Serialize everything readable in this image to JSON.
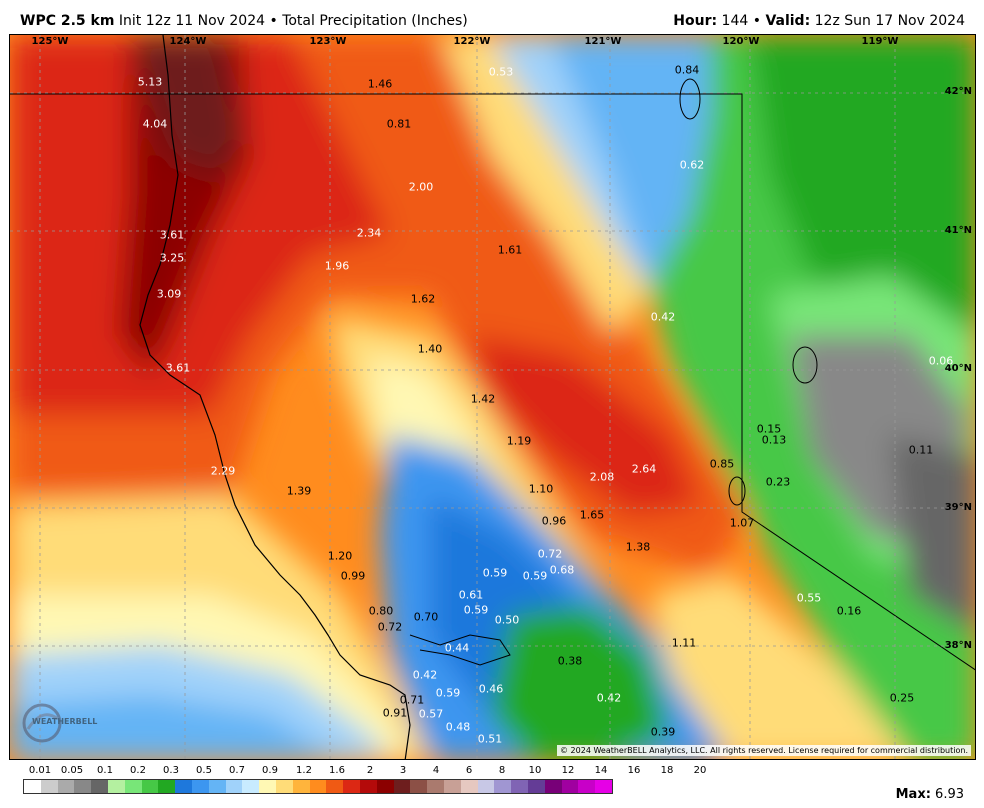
{
  "header": {
    "model": "WPC 2.5 km",
    "init": "Init 12z 11 Nov 2024",
    "bullet": "•",
    "product": "Total Precipitation (Inches)",
    "hour_label": "Hour:",
    "hour_value": "144",
    "valid_label": "Valid:",
    "valid_value": "12z Sun 17 Nov 2024"
  },
  "lon_labels": [
    "125°W",
    "124°W",
    "123°W",
    "122°W",
    "121°W",
    "120°W",
    "119°W"
  ],
  "lat_labels": [
    "42°N",
    "41°N",
    "40°N",
    "39°N",
    "38°N"
  ],
  "values": [
    {
      "t": "5.13",
      "c": "light"
    },
    {
      "t": "4.04",
      "c": "light"
    },
    {
      "t": "1.46",
      "c": "dark"
    },
    {
      "t": "0.53",
      "c": "light"
    },
    {
      "t": "0.84",
      "c": "dark"
    },
    {
      "t": "0.81",
      "c": "dark"
    },
    {
      "t": "0.62",
      "c": "light"
    },
    {
      "t": "2.00",
      "c": "light"
    },
    {
      "t": "3.61",
      "c": "light"
    },
    {
      "t": "3.25",
      "c": "light"
    },
    {
      "t": "2.34",
      "c": "light"
    },
    {
      "t": "1.96",
      "c": "light"
    },
    {
      "t": "1.61",
      "c": "dark"
    },
    {
      "t": "3.09",
      "c": "light"
    },
    {
      "t": "1.62",
      "c": "dark"
    },
    {
      "t": "0.42",
      "c": "light"
    },
    {
      "t": "1.40",
      "c": "dark"
    },
    {
      "t": "0.06",
      "c": "light"
    },
    {
      "t": "3.61",
      "c": "light"
    },
    {
      "t": "1.42",
      "c": "dark"
    },
    {
      "t": "1.19",
      "c": "dark"
    },
    {
      "t": "0.15",
      "c": "dark"
    },
    {
      "t": "0.13",
      "c": "dark"
    },
    {
      "t": "0.11",
      "c": "dark"
    },
    {
      "t": "2.29",
      "c": "light"
    },
    {
      "t": "0.85",
      "c": "dark"
    },
    {
      "t": "2.64",
      "c": "light"
    },
    {
      "t": "2.08",
      "c": "light"
    },
    {
      "t": "0.23",
      "c": "dark"
    },
    {
      "t": "1.39",
      "c": "dark"
    },
    {
      "t": "1.10",
      "c": "dark"
    },
    {
      "t": "1.65",
      "c": "dark"
    },
    {
      "t": "0.96",
      "c": "dark"
    },
    {
      "t": "1.07",
      "c": "dark"
    },
    {
      "t": "1.38",
      "c": "dark"
    },
    {
      "t": "1.20",
      "c": "dark"
    },
    {
      "t": "0.72",
      "c": "light"
    },
    {
      "t": "0.99",
      "c": "dark"
    },
    {
      "t": "0.59",
      "c": "light"
    },
    {
      "t": "0.59",
      "c": "light"
    },
    {
      "t": "0.68",
      "c": "light"
    },
    {
      "t": "0.61",
      "c": "light"
    },
    {
      "t": "0.55",
      "c": "light"
    },
    {
      "t": "0.16",
      "c": "dark"
    },
    {
      "t": "0.80",
      "c": "dark"
    },
    {
      "t": "0.59",
      "c": "light"
    },
    {
      "t": "0.70",
      "c": "dark"
    },
    {
      "t": "0.72",
      "c": "dark"
    },
    {
      "t": "0.50",
      "c": "light"
    },
    {
      "t": "1.11",
      "c": "dark"
    },
    {
      "t": "0.44",
      "c": "light"
    },
    {
      "t": "0.38",
      "c": "dark"
    },
    {
      "t": "0.42",
      "c": "light"
    },
    {
      "t": "0.59",
      "c": "light"
    },
    {
      "t": "0.46",
      "c": "light"
    },
    {
      "t": "0.71",
      "c": "dark"
    },
    {
      "t": "0.42",
      "c": "light"
    },
    {
      "t": "0.25",
      "c": "dark"
    },
    {
      "t": "0.91",
      "c": "dark"
    },
    {
      "t": "0.57",
      "c": "light"
    },
    {
      "t": "0.48",
      "c": "light"
    },
    {
      "t": "0.51",
      "c": "light"
    },
    {
      "t": "0.39",
      "c": "dark"
    }
  ],
  "copyright": "© 2024 WeatherBELL Analytics, LLC. All rights reserved. License required for commercial distribution.",
  "logo_text": "WEATHERBELL",
  "legend": {
    "labels": [
      "0.01",
      "0.05",
      "0.1",
      "0.2",
      "0.3",
      "0.5",
      "0.7",
      "0.9",
      "1.2",
      "1.6",
      "2",
      "3",
      "4",
      "6",
      "8",
      "10",
      "12",
      "14",
      "16",
      "18",
      "20"
    ],
    "colors": [
      "#ffffff",
      "#cccccc",
      "#aaaaaa",
      "#888888",
      "#666666",
      "#b4f0a0",
      "#78e678",
      "#46c846",
      "#22a822",
      "#1e78dc",
      "#3c96f0",
      "#64b4f5",
      "#a0d2fa",
      "#c8ebff",
      "#fff8b4",
      "#ffdc78",
      "#ffb43c",
      "#ff8c1e",
      "#f05a14",
      "#dc2814",
      "#b40a0a",
      "#8c0000",
      "#6e1e1e",
      "#8c5046",
      "#aa7a6e",
      "#c8a096",
      "#e6c8c0",
      "#c8c8e6",
      "#a096d2",
      "#8064b4",
      "#643c96",
      "#780078",
      "#a000a0",
      "#c800c8",
      "#e600e6"
    ],
    "max_label": "Max:",
    "max_value": "6.93"
  }
}
